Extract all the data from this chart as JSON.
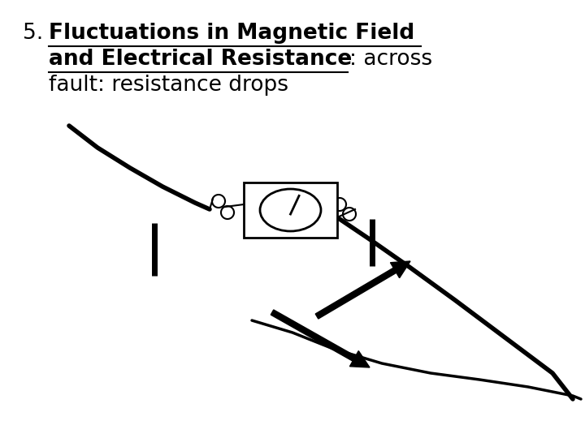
{
  "bg_color": "#ffffff",
  "line_color": "#000000",
  "fig_width": 7.2,
  "fig_height": 5.4,
  "dpi": 100,
  "title_5": "5. ",
  "title_bold": "Fluctuations in Magnetic Field",
  "title_bold2": "and Electrical Resistance",
  "title_normal1": ": across",
  "title_normal2": "fault: resistance drops"
}
